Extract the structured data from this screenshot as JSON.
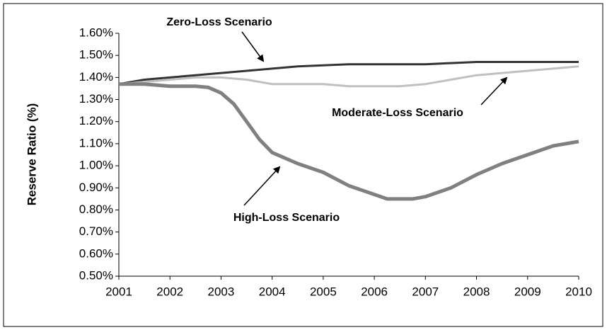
{
  "chart_data": {
    "type": "line",
    "y_label": "Reserve Ratio (%)",
    "xlim": [
      2001,
      2010
    ],
    "xticks": [
      2001,
      2002,
      2003,
      2004,
      2005,
      2006,
      2007,
      2008,
      2009,
      2010
    ],
    "ylim": [
      0.5,
      1.6
    ],
    "yticks": [
      {
        "value": 0.5,
        "label": "0.50%"
      },
      {
        "value": 0.6,
        "label": "0.60%"
      },
      {
        "value": 0.7,
        "label": "0.70%"
      },
      {
        "value": 0.8,
        "label": "0.80%"
      },
      {
        "value": 0.9,
        "label": "0.90%"
      },
      {
        "value": 1.0,
        "label": "1.00%"
      },
      {
        "value": 1.1,
        "label": "1.10%"
      },
      {
        "value": 1.2,
        "label": "1.20%"
      },
      {
        "value": 1.3,
        "label": "1.30%"
      },
      {
        "value": 1.4,
        "label": "1.40%"
      },
      {
        "value": 1.5,
        "label": "1.50%"
      },
      {
        "value": 1.6,
        "label": "1.60%"
      }
    ],
    "grid": false,
    "series": [
      {
        "name": "Zero-Loss Scenario",
        "color": "#333333",
        "x": [
          2001,
          2001.5,
          2002,
          2002.5,
          2003,
          2003.5,
          2004,
          2004.5,
          2005,
          2005.5,
          2006,
          2006.5,
          2007,
          2007.5,
          2008,
          2008.5,
          2009,
          2009.5,
          2010
        ],
        "values": [
          1.37,
          1.39,
          1.4,
          1.41,
          1.42,
          1.43,
          1.44,
          1.45,
          1.455,
          1.46,
          1.46,
          1.46,
          1.46,
          1.465,
          1.47,
          1.47,
          1.47,
          1.47,
          1.47
        ]
      },
      {
        "name": "Moderate-Loss Scenario",
        "color": "#c0c0c0",
        "x": [
          2001,
          2001.5,
          2002,
          2002.5,
          2003,
          2003.5,
          2004,
          2004.5,
          2005,
          2005.5,
          2006,
          2006.5,
          2007,
          2007.5,
          2008,
          2008.5,
          2009,
          2009.5,
          2010
        ],
        "values": [
          1.37,
          1.38,
          1.39,
          1.4,
          1.4,
          1.39,
          1.37,
          1.37,
          1.37,
          1.36,
          1.36,
          1.36,
          1.37,
          1.39,
          1.41,
          1.42,
          1.43,
          1.44,
          1.45
        ]
      },
      {
        "name": "High-Loss Scenario",
        "color": "#808080",
        "x": [
          2001,
          2001.5,
          2002,
          2002.5,
          2002.75,
          2003,
          2003.25,
          2003.5,
          2003.75,
          2004,
          2004.5,
          2005,
          2005.5,
          2006,
          2006.25,
          2006.5,
          2006.75,
          2007,
          2007.5,
          2008,
          2008.5,
          2009,
          2009.5,
          2010
        ],
        "values": [
          1.37,
          1.37,
          1.36,
          1.36,
          1.355,
          1.33,
          1.28,
          1.2,
          1.12,
          1.06,
          1.01,
          0.97,
          0.91,
          0.87,
          0.85,
          0.85,
          0.85,
          0.86,
          0.9,
          0.96,
          1.01,
          1.05,
          1.09,
          1.11
        ]
      }
    ]
  }
}
